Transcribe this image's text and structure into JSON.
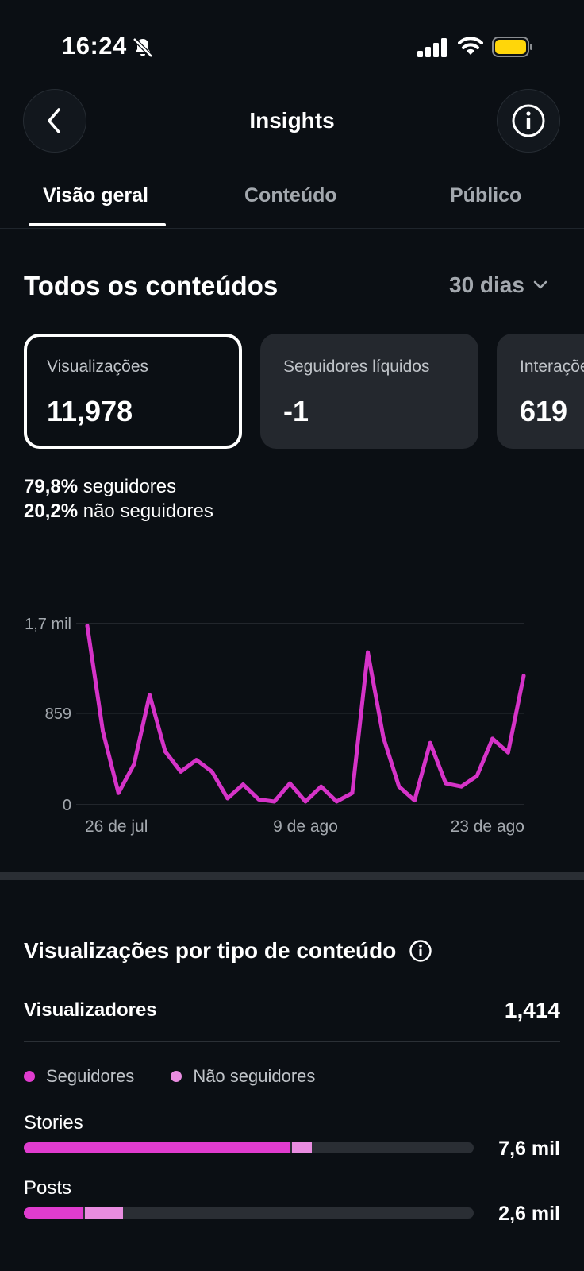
{
  "status": {
    "time": "16:24"
  },
  "header": {
    "title": "Insights"
  },
  "tabs": [
    {
      "label": "Visão geral"
    },
    {
      "label": "Conteúdo"
    },
    {
      "label": "Público"
    }
  ],
  "section": {
    "title": "Todos os conteúdos",
    "range": "30 dias"
  },
  "cards": [
    {
      "label": "Visualizações",
      "value": "11,978"
    },
    {
      "label": "Seguidores líquidos",
      "value": "-1"
    },
    {
      "label": "Interações",
      "value": "619"
    }
  ],
  "audience_split": {
    "followers_pct": "79,8%",
    "followers_label": "seguidores",
    "non_followers_pct": "20,2%",
    "non_followers_label": "não seguidores"
  },
  "chart_data": {
    "type": "line",
    "y_tick_labels": [
      "1,7 mil",
      "859",
      "0"
    ],
    "y_ticks": [
      1700,
      859,
      0
    ],
    "ylim": [
      0,
      1700
    ],
    "x_tick_labels": [
      "26 de jul",
      "9 de ago",
      "23 de ago"
    ],
    "x_tick_indices": [
      0,
      14,
      28
    ],
    "grid": true,
    "color": "#d633c8",
    "series": [
      {
        "values": [
          1680,
          690,
          110,
          380,
          1030,
          500,
          310,
          420,
          310,
          60,
          190,
          50,
          30,
          200,
          30,
          170,
          30,
          110,
          1430,
          630,
          170,
          40,
          580,
          200,
          170,
          270,
          620,
          490,
          1210
        ]
      }
    ]
  },
  "content_type": {
    "title": "Visualizações por tipo de conteúdo",
    "viewers_label": "Visualizadores",
    "viewers_value": "1,414",
    "legend": {
      "followers": "Seguidores",
      "non_followers": "Não seguidores"
    },
    "colors": {
      "followers": "#e03ccf",
      "non_followers": "#e98ce0",
      "track": "#2a2e34"
    },
    "rows": [
      {
        "name": "Stories",
        "amount": "7,6 mil",
        "followers_fraction": 0.59,
        "non_followers_fraction": 0.045
      },
      {
        "name": "Posts",
        "amount": "2,6 mil",
        "followers_fraction": 0.13,
        "non_followers_fraction": 0.085
      }
    ]
  }
}
